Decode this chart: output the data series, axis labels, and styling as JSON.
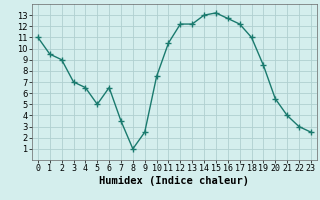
{
  "title": "",
  "xlabel": "Humidex (Indice chaleur)",
  "ylabel": "",
  "x": [
    0,
    1,
    2,
    3,
    4,
    5,
    6,
    7,
    8,
    9,
    10,
    11,
    12,
    13,
    14,
    15,
    16,
    17,
    18,
    19,
    20,
    21,
    22,
    23
  ],
  "y": [
    11,
    9.5,
    9,
    7,
    6.5,
    5,
    6.5,
    3.5,
    1,
    2.5,
    7.5,
    10.5,
    12.2,
    12.2,
    13,
    13.2,
    12.7,
    12.2,
    11,
    8.5,
    5.5,
    4,
    3,
    2.5
  ],
  "xlim": [
    -0.5,
    23.5
  ],
  "ylim": [
    0,
    14
  ],
  "xticks": [
    0,
    1,
    2,
    3,
    4,
    5,
    6,
    7,
    8,
    9,
    10,
    11,
    12,
    13,
    14,
    15,
    16,
    17,
    18,
    19,
    20,
    21,
    22,
    23
  ],
  "yticks": [
    1,
    2,
    3,
    4,
    5,
    6,
    7,
    8,
    9,
    10,
    11,
    12,
    13
  ],
  "line_color": "#1a7a6e",
  "marker": "+",
  "marker_size": 4,
  "bg_color": "#d4eeed",
  "grid_color": "#b0d0d0",
  "tick_label_fontsize": 6,
  "xlabel_fontsize": 7.5
}
